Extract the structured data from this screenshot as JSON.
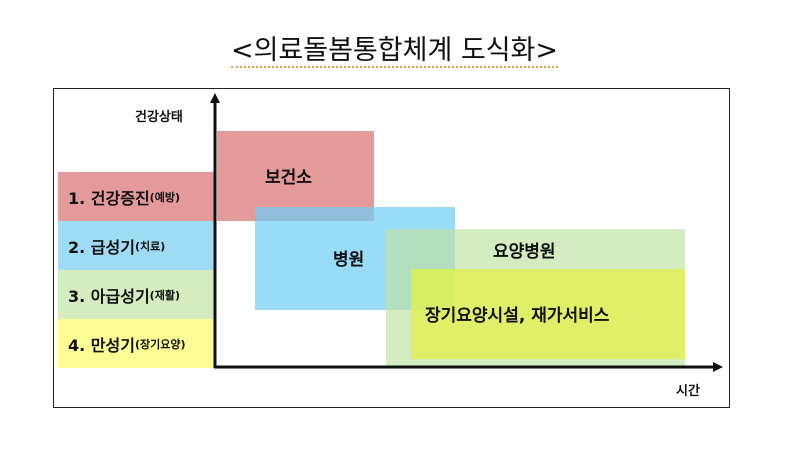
{
  "title": "<의료돌봄통합체계  도식화>",
  "axes": {
    "y_label": "건강상태",
    "x_label": "시간"
  },
  "stages": [
    {
      "main": "1. 건강증진",
      "sub": "(예방)",
      "color": "#e49a9a"
    },
    {
      "main": "2. 급성기",
      "sub": "(치료)",
      "color": "#9edcf4"
    },
    {
      "main": "3. 아급성기",
      "sub": "(재활)",
      "color": "#d5ebc0"
    },
    {
      "main": "4. 만성기",
      "sub": "(장기요양)",
      "color": "#fdfd96"
    }
  ],
  "services": [
    {
      "label": "보건소",
      "color": "rgba(220,120,120,0.75)"
    },
    {
      "label": "병원",
      "color": "rgba(110,205,245,0.7)"
    },
    {
      "label": "요양병원",
      "color": "rgba(190,225,160,0.65)"
    },
    {
      "label": "장기요양시설, 재가서비스",
      "color": "rgba(225,240,80,0.8)"
    }
  ]
}
